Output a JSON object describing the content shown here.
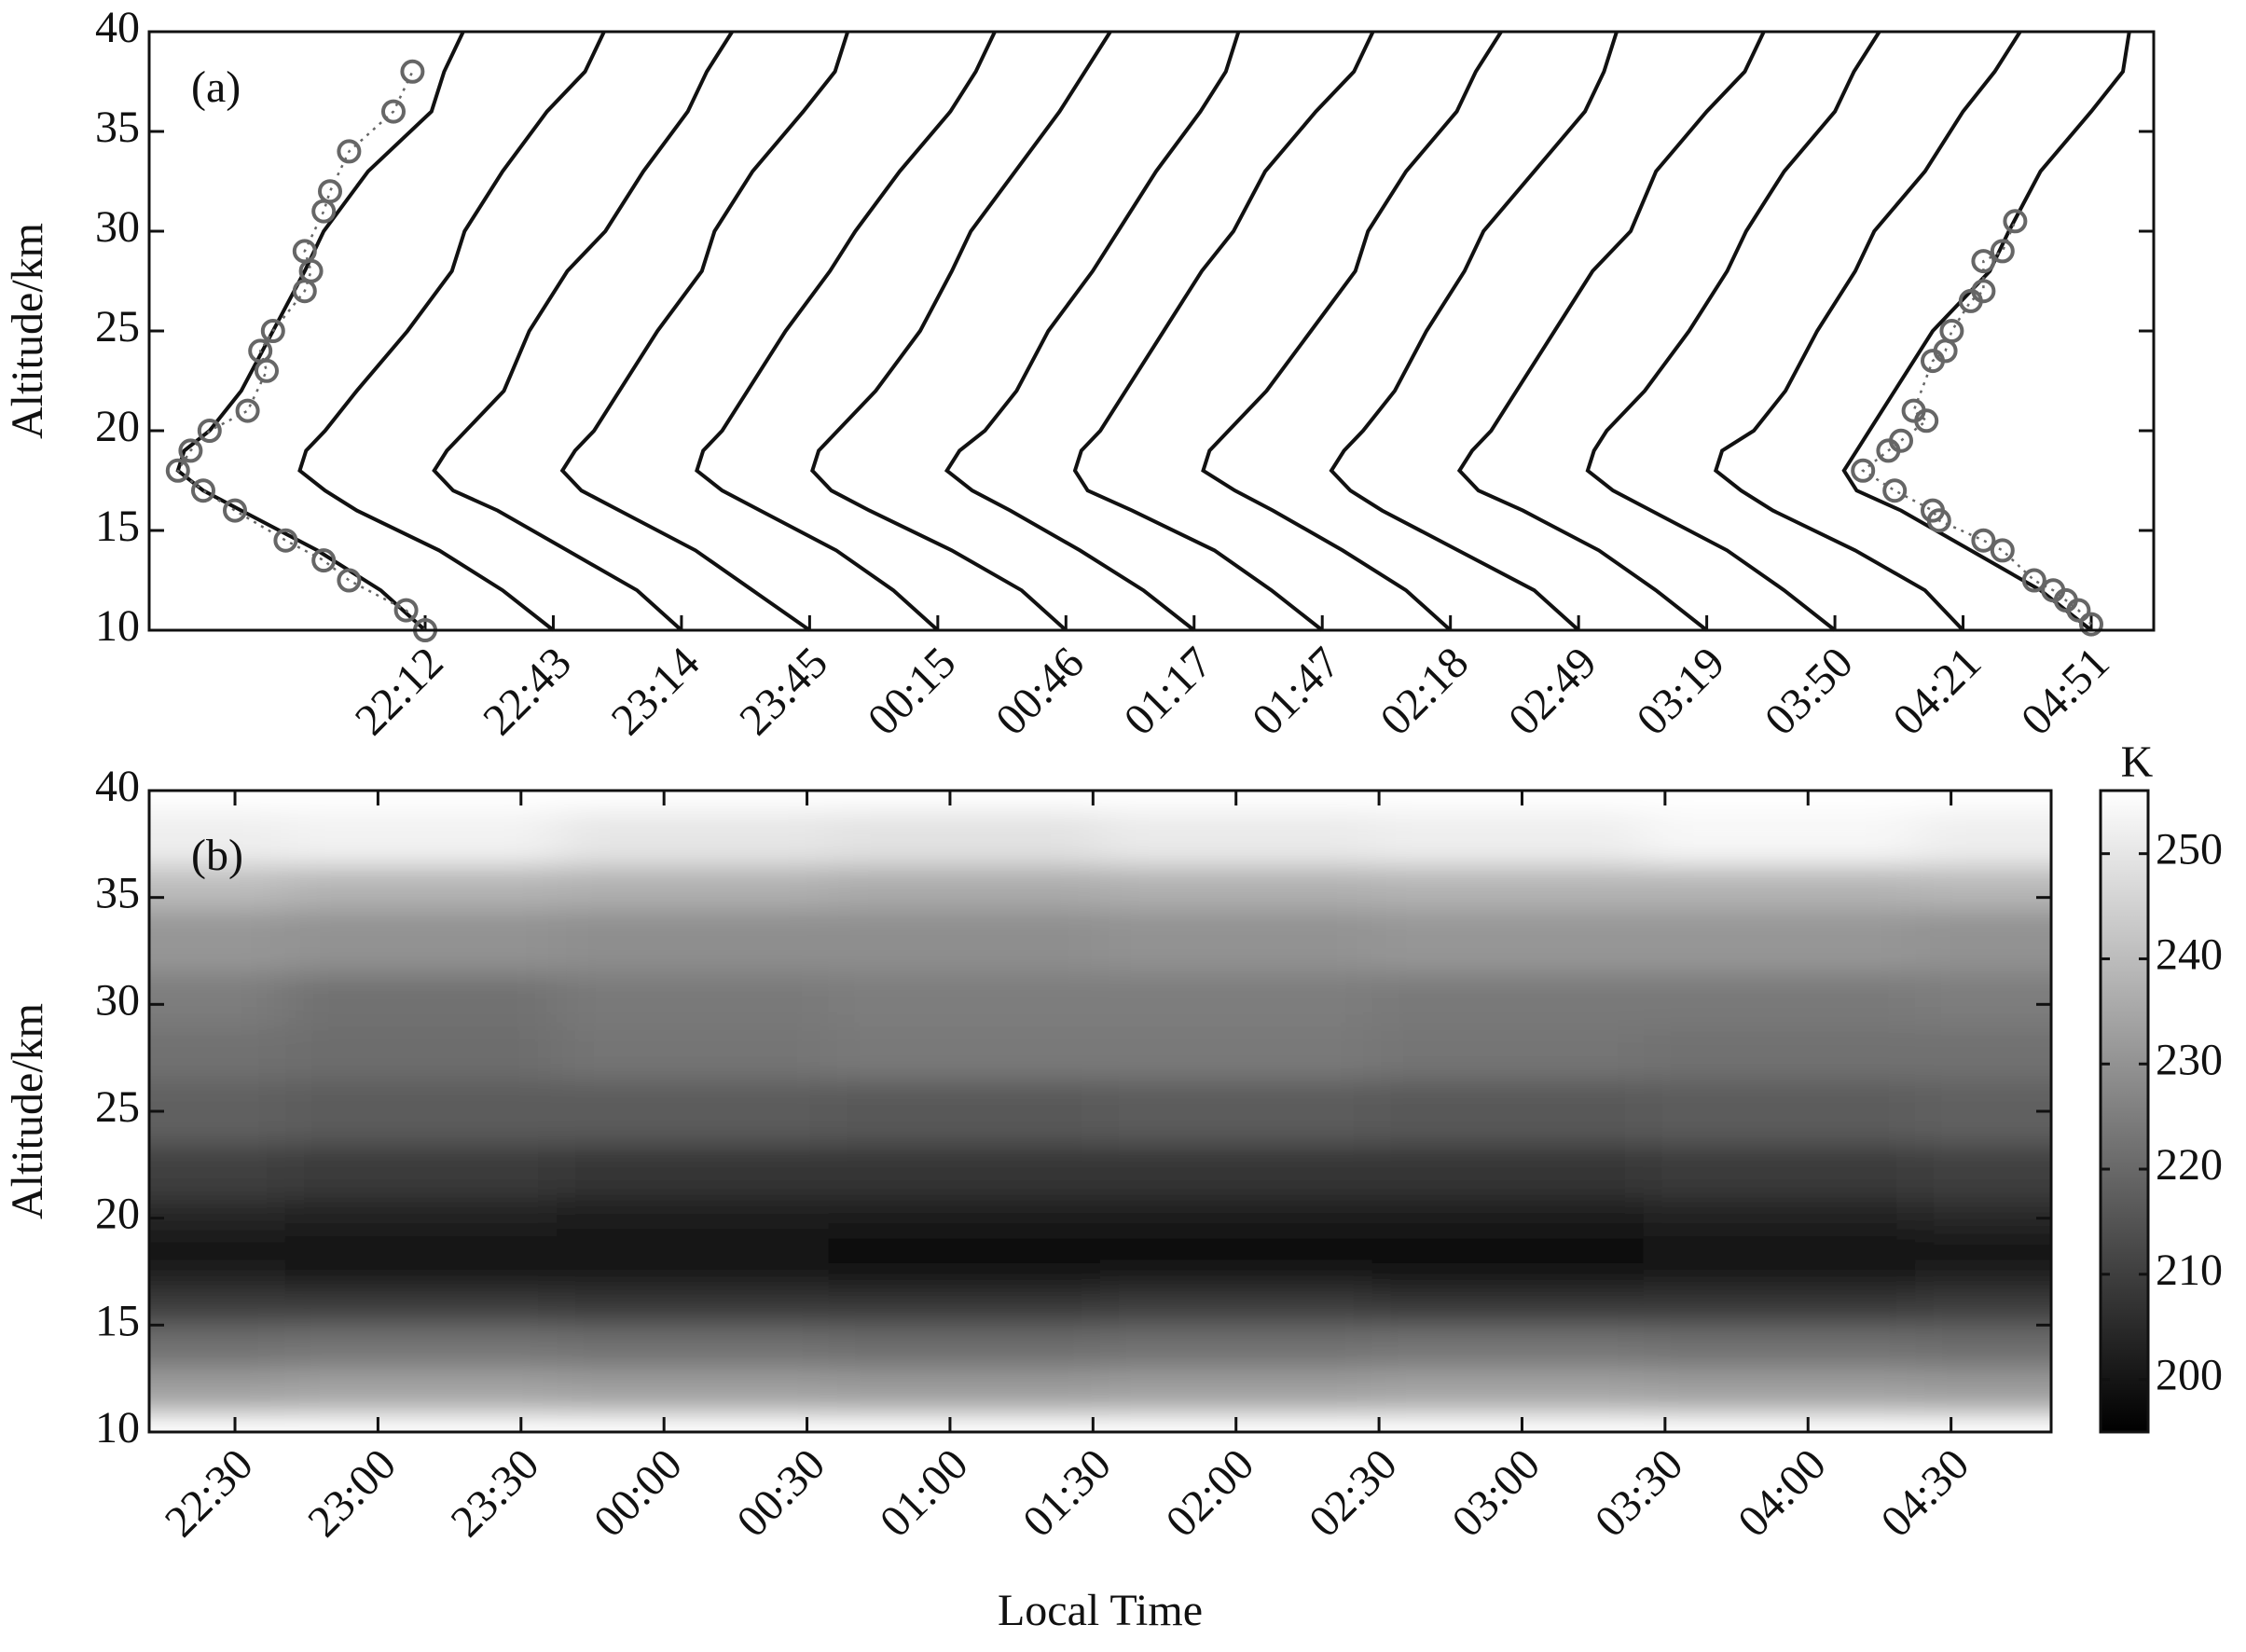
{
  "chart_data": [
    {
      "type": "profiles",
      "annotation": "(a)",
      "ylabel": "Altitude/km",
      "ylim": [
        10,
        40
      ],
      "yticks": [
        10,
        15,
        20,
        25,
        30,
        35,
        40
      ],
      "y": [
        10,
        12,
        14,
        16,
        17,
        18,
        19,
        20,
        22,
        25,
        28,
        30,
        33,
        36,
        38,
        40
      ],
      "color": "#111111",
      "series": [
        {
          "name": "22:12",
          "values": [
            238,
            231,
            221,
            209,
            203,
            199,
            200,
            204,
            209,
            214,
            219,
            222,
            229,
            239,
            241,
            244
          ],
          "sounding": {
            "color": "#666666",
            "y": [
              10,
              11,
              12.5,
              13.5,
              14.5,
              16,
              17,
              18,
              19,
              20,
              21,
              23,
              24,
              25,
              27,
              28,
              29,
              31,
              32,
              34,
              36,
              38
            ],
            "x": [
              238,
              235,
              226,
              222,
              216,
              208,
              203,
              199,
              201,
              204,
              210,
              213,
              212,
              214,
              219,
              220,
              219,
              222,
              223,
              226,
              233,
              236
            ]
          }
        },
        {
          "name": "22:43",
          "values": [
            238,
            230,
            220,
            207,
            202,
            198,
            199,
            202,
            207,
            215,
            222,
            224,
            230,
            237,
            243,
            246
          ]
        },
        {
          "name": "23:14",
          "values": [
            237,
            230,
            219,
            208,
            201,
            198,
            200,
            203,
            209,
            213,
            219,
            225,
            231,
            238,
            241,
            245
          ]
        },
        {
          "name": "23:45",
          "values": [
            238,
            229,
            220,
            208,
            202,
            199,
            201,
            204,
            208,
            214,
            221,
            223,
            229,
            237,
            242,
            244
          ]
        },
        {
          "name": "00:15",
          "values": [
            237,
            230,
            221,
            209,
            203,
            199,
            200,
            203,
            207,
            213,
            220,
            224,
            231,
            239,
            243,
            246
          ]
        },
        {
          "name": "00:46",
          "values": [
            238,
            231,
            220,
            207,
            201,
            198,
            199,
            202,
            208,
            215,
            220,
            223,
            230,
            237,
            241,
            245
          ]
        },
        {
          "name": "01:17",
          "values": [
            237,
            229,
            219,
            208,
            202,
            198,
            200,
            204,
            209,
            214,
            221,
            225,
            231,
            238,
            242,
            244
          ]
        },
        {
          "name": "01:47",
          "values": [
            238,
            230,
            221,
            208,
            201,
            199,
            200,
            203,
            207,
            213,
            219,
            224,
            229,
            237,
            243,
            246
          ]
        },
        {
          "name": "02:18",
          "values": [
            237,
            230,
            220,
            209,
            203,
            198,
            199,
            202,
            208,
            215,
            222,
            224,
            230,
            238,
            241,
            245
          ]
        },
        {
          "name": "02:49",
          "values": [
            238,
            231,
            219,
            207,
            202,
            199,
            201,
            204,
            209,
            214,
            220,
            223,
            231,
            239,
            242,
            244
          ]
        },
        {
          "name": "03:19",
          "values": [
            237,
            229,
            220,
            208,
            201,
            198,
            200,
            203,
            207,
            213,
            219,
            225,
            229,
            237,
            243,
            246
          ]
        },
        {
          "name": "03:50",
          "values": [
            238,
            230,
            221,
            209,
            203,
            199,
            200,
            202,
            208,
            215,
            221,
            224,
            230,
            238,
            241,
            245
          ]
        },
        {
          "name": "04:21",
          "values": [
            237,
            231,
            220,
            207,
            202,
            198,
            199,
            204,
            209,
            214,
            220,
            223,
            231,
            237,
            242,
            246
          ]
        },
        {
          "name": "04:51",
          "values": [
            238,
            230,
            219,
            208,
            201,
            199,
            201,
            203,
            207,
            213,
            222,
            225,
            230,
            238,
            243,
            244
          ],
          "sounding": {
            "color": "#666666",
            "y": [
              10.3,
              11,
              11.5,
              12,
              12.5,
              14,
              14.5,
              15.5,
              16,
              17,
              18,
              19,
              19.5,
              20.5,
              21,
              23.5,
              24,
              25,
              26.5,
              27,
              28.5,
              29,
              30.5
            ],
            "x": [
              238,
              236,
              234,
              232,
              229,
              224,
              221,
              214,
              213,
              207,
              202,
              206,
              208,
              212,
              210,
              213,
              215,
              216,
              219,
              221,
              221,
              224,
              226
            ]
          }
        }
      ]
    },
    {
      "type": "heatmap",
      "annotation": "(b)",
      "xlabel": "Local Time",
      "ylabel": "Altitude/km",
      "xlim": [
        22.2,
        28.85
      ],
      "ylim": [
        10,
        40
      ],
      "yticks": [
        10,
        15,
        20,
        25,
        30,
        35,
        40
      ],
      "xticks": [
        {
          "value": 22.5,
          "label": "22:30"
        },
        {
          "value": 23,
          "label": "23:00"
        },
        {
          "value": 23.5,
          "label": "23:30"
        },
        {
          "value": 24,
          "label": "00:00"
        },
        {
          "value": 24.5,
          "label": "00:30"
        },
        {
          "value": 25,
          "label": "01:00"
        },
        {
          "value": 25.5,
          "label": "01:30"
        },
        {
          "value": 26,
          "label": "02:00"
        },
        {
          "value": 26.5,
          "label": "02:30"
        },
        {
          "value": 27,
          "label": "03:00"
        },
        {
          "value": 27.5,
          "label": "03:30"
        },
        {
          "value": 28,
          "label": "04:00"
        },
        {
          "value": 28.5,
          "label": "04:30"
        }
      ],
      "x": [
        22.2,
        23.15,
        24.1,
        25.05,
        26.0,
        26.95,
        27.9,
        28.85
      ],
      "y": [
        10,
        12,
        14,
        16,
        17,
        18,
        19,
        20,
        22,
        25,
        28,
        30,
        33,
        36,
        38,
        40
      ],
      "z": [
        [
          240,
          241,
          240,
          239,
          240,
          241,
          240,
          239
        ],
        [
          233,
          234,
          233,
          232,
          233,
          234,
          233,
          232
        ],
        [
          222,
          223,
          222,
          221,
          222,
          223,
          222,
          221
        ],
        [
          210,
          210,
          209,
          209,
          210,
          209,
          209,
          210
        ],
        [
          204,
          203,
          203,
          202,
          203,
          202,
          203,
          204
        ],
        [
          200,
          199,
          199,
          198,
          198,
          198,
          199,
          200
        ],
        [
          201,
          200,
          200,
          199,
          199,
          199,
          200,
          201
        ],
        [
          204,
          203,
          202,
          202,
          202,
          202,
          203,
          205
        ],
        [
          210,
          209,
          208,
          208,
          208,
          208,
          209,
          210
        ],
        [
          218,
          217,
          217,
          216,
          217,
          216,
          217,
          218
        ],
        [
          222,
          221,
          223,
          224,
          224,
          223,
          222,
          222
        ],
        [
          225,
          222,
          224,
          225,
          225,
          224,
          224,
          225
        ],
        [
          231,
          230,
          229,
          229,
          230,
          231,
          231,
          230
        ],
        [
          240,
          238,
          237,
          236,
          237,
          238,
          238,
          239
        ],
        [
          246,
          244,
          242,
          241,
          243,
          245,
          246,
          245
        ],
        [
          252,
          253,
          250,
          249,
          251,
          252,
          254,
          252
        ]
      ],
      "colorbar_label": "K",
      "zlim": [
        195,
        256
      ],
      "zticks": [
        200,
        210,
        220,
        230,
        240,
        250
      ],
      "colormap": [
        "#000000",
        "#ffffff"
      ]
    }
  ]
}
